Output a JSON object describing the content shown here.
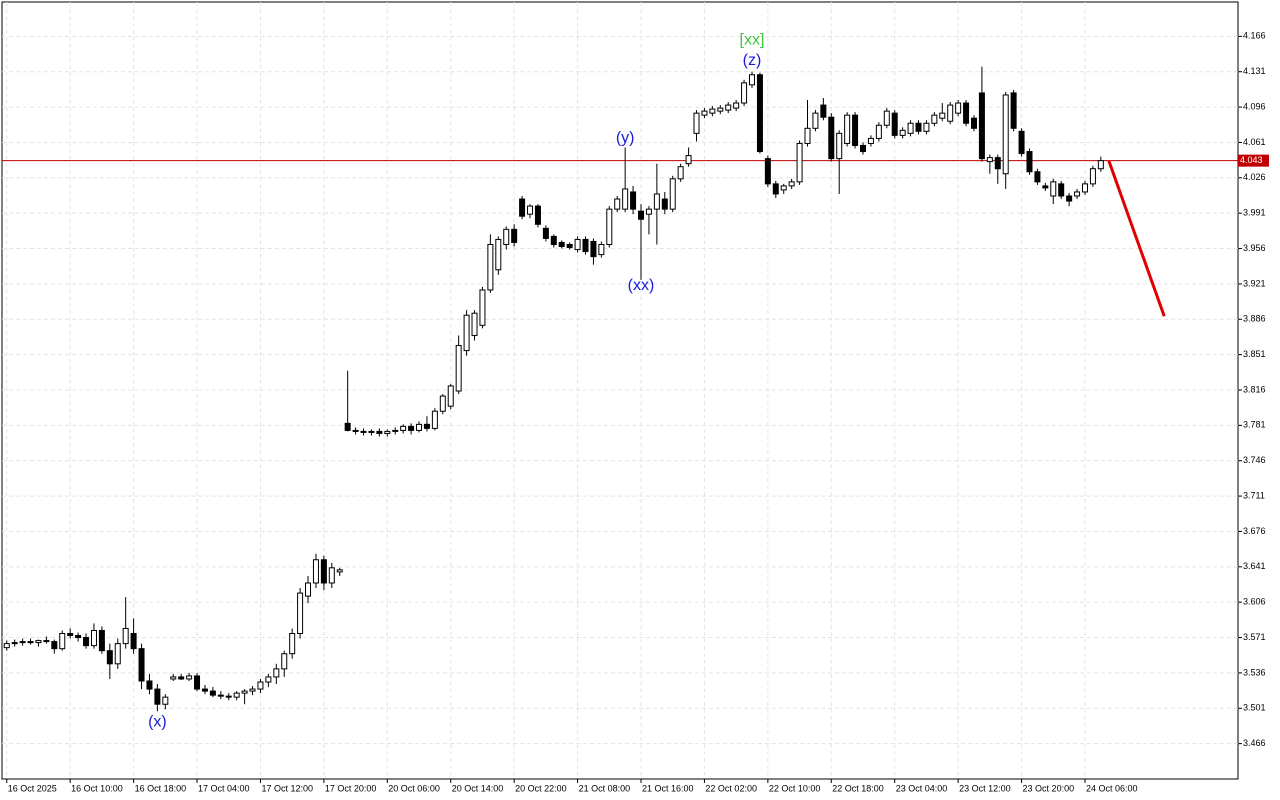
{
  "chart_data": {
    "type": "candlestick",
    "grid": true,
    "xlim": [
      -0.6,
      155.3
    ],
    "ylim": [
      3.431,
      4.2
    ],
    "yticks": [
      4.166,
      4.131,
      4.096,
      4.061,
      4.026,
      3.991,
      3.956,
      3.921,
      3.886,
      3.851,
      3.816,
      3.781,
      3.746,
      3.711,
      3.676,
      3.641,
      3.606,
      3.571,
      3.536,
      3.501,
      3.466
    ],
    "xticks": [
      {
        "value": 0,
        "label": "16 Oct 2025"
      },
      {
        "value": 8,
        "label": "16 Oct 10:00"
      },
      {
        "value": 16,
        "label": "16 Oct 18:00"
      },
      {
        "value": 24,
        "label": "17 Oct 04:00"
      },
      {
        "value": 32,
        "label": "17 Oct 12:00"
      },
      {
        "value": 40,
        "label": "17 Oct 20:00"
      },
      {
        "value": 48,
        "label": "20 Oct 06:00"
      },
      {
        "value": 56,
        "label": "20 Oct 14:00"
      },
      {
        "value": 64,
        "label": "20 Oct 22:00"
      },
      {
        "value": 72,
        "label": "21 Oct 08:00"
      },
      {
        "value": 80,
        "label": "21 Oct 16:00"
      },
      {
        "value": 88,
        "label": "22 Oct 02:00"
      },
      {
        "value": 96,
        "label": "22 Oct 10:00"
      },
      {
        "value": 104,
        "label": "22 Oct 18:00"
      },
      {
        "value": 112,
        "label": "23 Oct 04:00"
      },
      {
        "value": 120,
        "label": "23 Oct 12:00"
      },
      {
        "value": 128,
        "label": "23 Oct 20:00"
      },
      {
        "value": 136,
        "label": "24 Oct 06:00"
      }
    ],
    "open": [
      3.561,
      3.565,
      3.566,
      3.567,
      3.566,
      3.568,
      3.567,
      3.56,
      3.575,
      3.573,
      3.571,
      3.563,
      3.578,
      3.558,
      3.545,
      3.565,
      3.575,
      3.56,
      3.528,
      3.52,
      3.505,
      3.53,
      3.532,
      3.53,
      3.533,
      3.52,
      3.518,
      3.514,
      3.513,
      3.512,
      3.516,
      3.518,
      3.52,
      3.527,
      3.532,
      3.54,
      3.555,
      3.575,
      3.612,
      3.625,
      3.648,
      3.625,
      3.636,
      3.783,
      3.776,
      3.775,
      3.774,
      3.775,
      3.773,
      3.775,
      3.776,
      3.78,
      3.776,
      3.782,
      3.778,
      3.795,
      3.8,
      3.815,
      3.855,
      3.87,
      3.88,
      3.915,
      3.935,
      3.96,
      3.975,
      4.005,
      3.99,
      3.998,
      3.976,
      3.968,
      3.962,
      3.96,
      3.955,
      3.965,
      3.963,
      3.95,
      3.96,
      3.995,
      3.995,
      4.012,
      3.993,
      3.99,
      3.995,
      4.005,
      3.995,
      4.025,
      4.04,
      4.07,
      4.088,
      4.09,
      4.092,
      4.093,
      4.095,
      4.1,
      4.118,
      4.128,
      4.045,
      4.02,
      4.014,
      4.018,
      4.022,
      4.06,
      4.075,
      4.098,
      4.086,
      4.045,
      4.06,
      4.088,
      4.058,
      4.06,
      4.065,
      4.078,
      4.09,
      4.068,
      4.07,
      4.08,
      4.072,
      4.08,
      4.085,
      4.082,
      4.09,
      4.1,
      4.085,
      4.11,
      4.042,
      4.046,
      4.03,
      4.11,
      4.072,
      4.052,
      4.032,
      4.018,
      4.008,
      4.02,
      4.008,
      4.008,
      4.012,
      4.02,
      4.035
    ],
    "high": [
      3.568,
      3.569,
      3.57,
      3.57,
      3.569,
      3.572,
      3.569,
      3.578,
      3.58,
      3.576,
      3.575,
      3.585,
      3.582,
      3.565,
      3.57,
      3.611,
      3.59,
      3.565,
      3.535,
      3.525,
      3.515,
      3.535,
      3.535,
      3.536,
      3.536,
      3.524,
      3.522,
      3.518,
      3.516,
      3.518,
      3.52,
      3.523,
      3.53,
      3.535,
      3.545,
      3.558,
      3.58,
      3.62,
      3.632,
      3.654,
      3.652,
      3.645,
      3.64,
      3.835,
      3.779,
      3.778,
      3.777,
      3.778,
      3.777,
      3.779,
      3.782,
      3.783,
      3.785,
      3.79,
      3.798,
      3.812,
      3.822,
      3.87,
      3.895,
      3.895,
      3.918,
      3.97,
      3.968,
      3.978,
      3.98,
      4.008,
      4.0,
      4.0,
      3.979,
      3.97,
      3.964,
      3.962,
      3.968,
      3.968,
      3.966,
      3.963,
      3.998,
      4.008,
      4.056,
      4.018,
      4.0,
      3.998,
      4.04,
      4.012,
      4.028,
      4.04,
      4.056,
      4.093,
      4.095,
      4.097,
      4.098,
      4.101,
      4.103,
      4.123,
      4.131,
      4.13,
      4.048,
      4.023,
      4.02,
      4.025,
      4.063,
      4.103,
      4.093,
      4.105,
      4.09,
      4.073,
      4.091,
      4.091,
      4.061,
      4.068,
      4.081,
      4.095,
      4.093,
      4.076,
      4.083,
      4.083,
      4.083,
      4.091,
      4.1,
      4.101,
      4.103,
      4.103,
      4.088,
      4.136,
      4.049,
      4.049,
      4.111,
      4.113,
      4.075,
      4.055,
      4.035,
      4.021,
      4.025,
      4.023,
      4.011,
      4.015,
      4.023,
      4.038,
      4.047
    ],
    "low": [
      3.558,
      3.562,
      3.563,
      3.564,
      3.562,
      3.565,
      3.555,
      3.558,
      3.57,
      3.567,
      3.56,
      3.56,
      3.555,
      3.53,
      3.54,
      3.56,
      3.555,
      3.52,
      3.515,
      3.498,
      3.5,
      3.528,
      3.529,
      3.528,
      3.518,
      3.515,
      3.512,
      3.51,
      3.509,
      3.509,
      3.505,
      3.514,
      3.516,
      3.522,
      3.525,
      3.532,
      3.55,
      3.57,
      3.605,
      3.62,
      3.618,
      3.62,
      3.632,
      3.775,
      3.772,
      3.771,
      3.771,
      3.77,
      3.77,
      3.772,
      3.773,
      3.772,
      3.774,
      3.775,
      3.776,
      3.792,
      3.797,
      3.812,
      3.85,
      3.865,
      3.877,
      3.912,
      3.93,
      3.955,
      3.958,
      3.985,
      3.986,
      3.977,
      3.963,
      3.957,
      3.956,
      3.955,
      3.952,
      3.95,
      3.94,
      3.947,
      3.957,
      3.992,
      3.992,
      3.99,
      3.925,
      3.97,
      3.96,
      3.99,
      3.992,
      4.022,
      4.037,
      4.062,
      4.085,
      4.087,
      4.089,
      4.09,
      4.092,
      4.097,
      4.115,
      4.05,
      4.017,
      4.006,
      4.01,
      4.015,
      4.019,
      4.057,
      4.072,
      4.083,
      4.042,
      4.01,
      4.057,
      4.055,
      4.049,
      4.057,
      4.062,
      4.075,
      4.065,
      4.065,
      4.067,
      4.069,
      4.069,
      4.077,
      4.082,
      4.079,
      4.087,
      4.077,
      4.072,
      4.042,
      4.03,
      4.02,
      4.015,
      4.072,
      4.047,
      4.029,
      4.019,
      4.013,
      4.0,
      4.005,
      3.998,
      4.005,
      4.009,
      4.017,
      4.032
    ],
    "close": [
      3.565,
      3.566,
      3.567,
      3.566,
      3.568,
      3.567,
      3.56,
      3.575,
      3.573,
      3.571,
      3.563,
      3.578,
      3.558,
      3.545,
      3.565,
      3.58,
      3.56,
      3.528,
      3.52,
      3.505,
      3.512,
      3.532,
      3.53,
      3.533,
      3.52,
      3.518,
      3.514,
      3.513,
      3.512,
      3.516,
      3.518,
      3.52,
      3.527,
      3.532,
      3.54,
      3.555,
      3.575,
      3.615,
      3.625,
      3.648,
      3.625,
      3.64,
      3.638,
      3.776,
      3.775,
      3.774,
      3.775,
      3.773,
      3.775,
      3.776,
      3.78,
      3.776,
      3.782,
      3.778,
      3.795,
      3.81,
      3.82,
      3.86,
      3.89,
      3.892,
      3.915,
      3.96,
      3.965,
      3.975,
      3.962,
      3.988,
      3.998,
      3.98,
      3.966,
      3.96,
      3.958,
      3.957,
      3.965,
      3.953,
      3.948,
      3.96,
      3.995,
      4.005,
      4.015,
      3.995,
      3.985,
      3.995,
      4.01,
      3.995,
      4.025,
      4.037,
      4.048,
      4.09,
      4.092,
      4.094,
      4.095,
      4.098,
      4.1,
      4.12,
      4.128,
      4.052,
      4.02,
      4.01,
      4.018,
      4.022,
      4.06,
      4.075,
      4.09,
      4.086,
      4.045,
      4.07,
      4.088,
      4.058,
      4.052,
      4.065,
      4.078,
      4.092,
      4.068,
      4.073,
      4.08,
      4.072,
      4.08,
      4.088,
      4.09,
      4.098,
      4.1,
      4.08,
      4.075,
      4.045,
      4.046,
      4.035,
      4.108,
      4.075,
      4.05,
      4.032,
      4.022,
      4.016,
      4.022,
      4.008,
      4.003,
      4.012,
      4.02,
      4.035,
      4.043
    ],
    "last_price": 4.043,
    "last_price_color": "#c00000",
    "forecast": {
      "x": [
        139,
        146
      ],
      "y": [
        4.043,
        3.889
      ],
      "color": "#e00000"
    },
    "annotations": [
      {
        "text": "(x)",
        "index": 19,
        "price": 3.487,
        "color": "#1a1ad8"
      },
      {
        "text": "(y)",
        "index": 78,
        "price": 4.065,
        "color": "#1a1ad8"
      },
      {
        "text": "(xx)",
        "index": 80,
        "price": 3.919,
        "color": "#1a1ad8"
      },
      {
        "text": "(z)",
        "index": 94,
        "price": 4.142,
        "color": "#1a1ad8"
      },
      {
        "text": "[xx]",
        "index": 94,
        "price": 4.162,
        "color": "#3cc83c"
      }
    ]
  }
}
